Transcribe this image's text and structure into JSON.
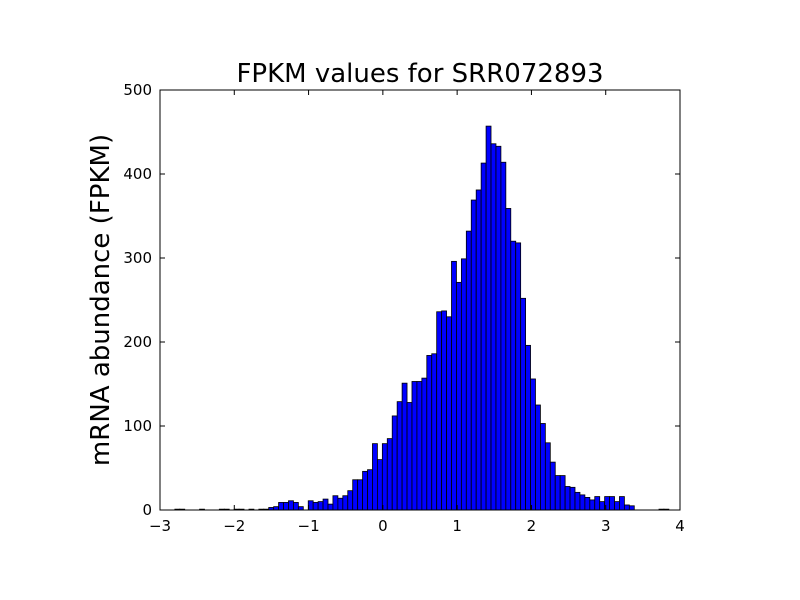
{
  "chart_data": {
    "type": "bar",
    "title": "FPKM values for SRR072893",
    "xlabel": "",
    "ylabel": "mRNA abundance (FPKM)",
    "xlim": [
      -3,
      4
    ],
    "ylim": [
      0,
      500
    ],
    "xticks": [
      "−3",
      "−2",
      "−1",
      "0",
      "1",
      "2",
      "3",
      "4"
    ],
    "yticks": [
      "0",
      "100",
      "200",
      "300",
      "400",
      "500"
    ],
    "xtick_values": [
      -3,
      -2,
      -1,
      0,
      1,
      2,
      3,
      4
    ],
    "ytick_values": [
      0,
      100,
      200,
      300,
      400,
      500
    ],
    "grid": false,
    "bar_color": "#0000ff",
    "edge_color": "#000000",
    "bin_edges_start": -2.8,
    "bin_width": 0.0665,
    "values": [
      1,
      1,
      0,
      0,
      0,
      1,
      0,
      0,
      0,
      1,
      1,
      0,
      1,
      1,
      0,
      1,
      0,
      1,
      1,
      3,
      4,
      9,
      9,
      11,
      9,
      4,
      0,
      11,
      9,
      10,
      13,
      7,
      17,
      14,
      17,
      23,
      36,
      36,
      46,
      48,
      79,
      60,
      79,
      85,
      112,
      129,
      151,
      128,
      153,
      153,
      157,
      184,
      186,
      236,
      237,
      230,
      296,
      271,
      299,
      332,
      369,
      381,
      413,
      457,
      436,
      433,
      414,
      359,
      320,
      318,
      252,
      196,
      156,
      125,
      103,
      80,
      57,
      41,
      41,
      28,
      27,
      21,
      18,
      15,
      12,
      16,
      10,
      16,
      16,
      10,
      16,
      6,
      5,
      0,
      0,
      0,
      0,
      0,
      1,
      1
    ]
  }
}
